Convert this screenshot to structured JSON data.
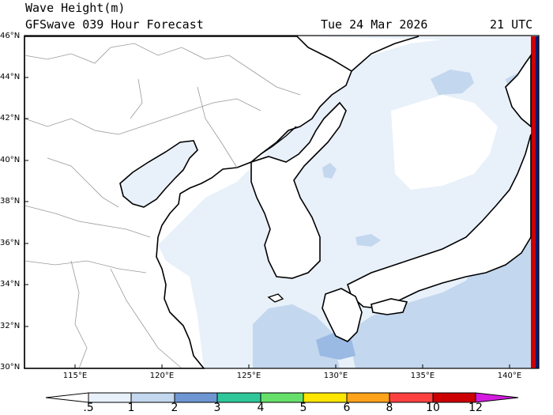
{
  "title": {
    "line1": "Wave Height(m)",
    "line2": "GFSwave 039 Hour Forecast",
    "date": "Tue 24 Mar 2026",
    "time": "21 UTC"
  },
  "axes": {
    "lat_labels": [
      "46°N",
      "44°N",
      "42°N",
      "40°N",
      "38°N",
      "36°N",
      "34°N",
      "32°N",
      "30°N"
    ],
    "lon_labels": [
      "115°E",
      "120°E",
      "125°E",
      "130°E",
      "135°E",
      "140°E"
    ]
  },
  "colorbar": {
    "labels": [
      ".5",
      "1",
      "2",
      "3",
      "4",
      "5",
      "6",
      "8",
      "10",
      "12"
    ],
    "colors": [
      "#e8f0fa",
      "#c3d7ee",
      "#9ab9e3",
      "#6e96d3",
      "#2fc79a",
      "#66e06b",
      "#ffe600",
      "#ffa31a",
      "#ff4040",
      "#cc0000",
      "#d41ce0"
    ]
  },
  "colors": {
    "land": "#ffffff",
    "sea_low": "#e8f0fa",
    "sea_mid": "#c3d7ee",
    "sea_high": "#9ab9e3",
    "sea_top": "#6e96d3"
  }
}
